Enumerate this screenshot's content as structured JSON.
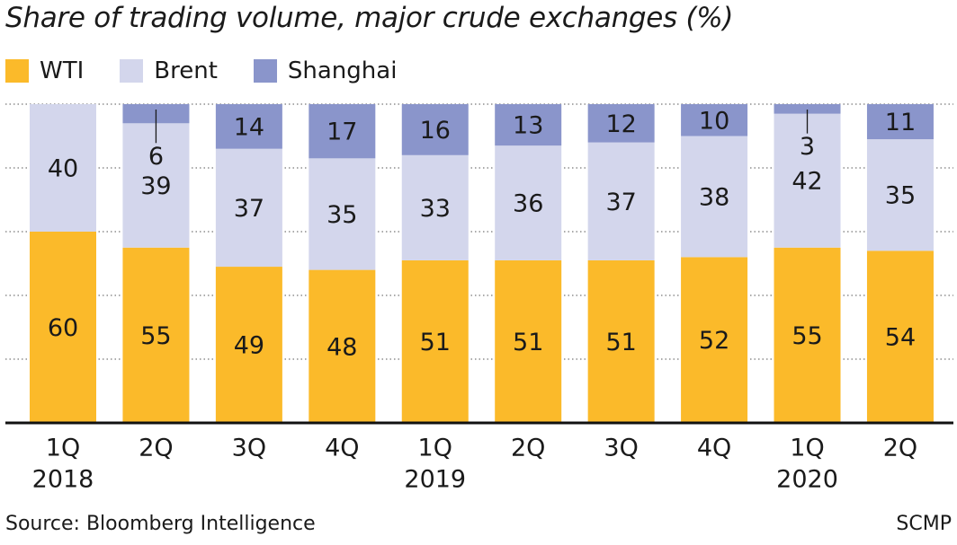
{
  "chart_data": {
    "type": "bar",
    "stacked": true,
    "title": "Share of trading volume, major crude exchanges (%)",
    "xlabel": "",
    "ylabel": "",
    "ylim": [
      0,
      100
    ],
    "legend_position": "top-left",
    "categories": [
      "1Q 2018",
      "2Q",
      "3Q",
      "4Q",
      "1Q 2019",
      "2Q",
      "3Q",
      "4Q",
      "1Q 2020",
      "2Q"
    ],
    "tick_labels": [
      [
        "1Q",
        "2018"
      ],
      [
        "2Q",
        ""
      ],
      [
        "3Q",
        ""
      ],
      [
        "4Q",
        ""
      ],
      [
        "1Q",
        "2019"
      ],
      [
        "2Q",
        ""
      ],
      [
        "3Q",
        ""
      ],
      [
        "4Q",
        ""
      ],
      [
        "1Q",
        "2020"
      ],
      [
        "2Q",
        ""
      ]
    ],
    "series": [
      {
        "name": "WTI",
        "color": "#FBBA2A",
        "values": [
          60,
          55,
          49,
          48,
          51,
          51,
          51,
          52,
          55,
          54
        ]
      },
      {
        "name": "Brent",
        "color": "#D3D6EC",
        "values": [
          40,
          39,
          37,
          35,
          33,
          36,
          37,
          38,
          42,
          35
        ]
      },
      {
        "name": "Shanghai",
        "color": "#8A95CB",
        "values": [
          0,
          6,
          14,
          17,
          16,
          13,
          12,
          10,
          3,
          11
        ]
      }
    ],
    "shanghai_labels": [
      "",
      "6",
      "14",
      "17",
      "16",
      "13",
      "12",
      "10",
      "3",
      "11"
    ]
  },
  "source": "Source: Bloomberg Intelligence",
  "credit": "SCMP"
}
